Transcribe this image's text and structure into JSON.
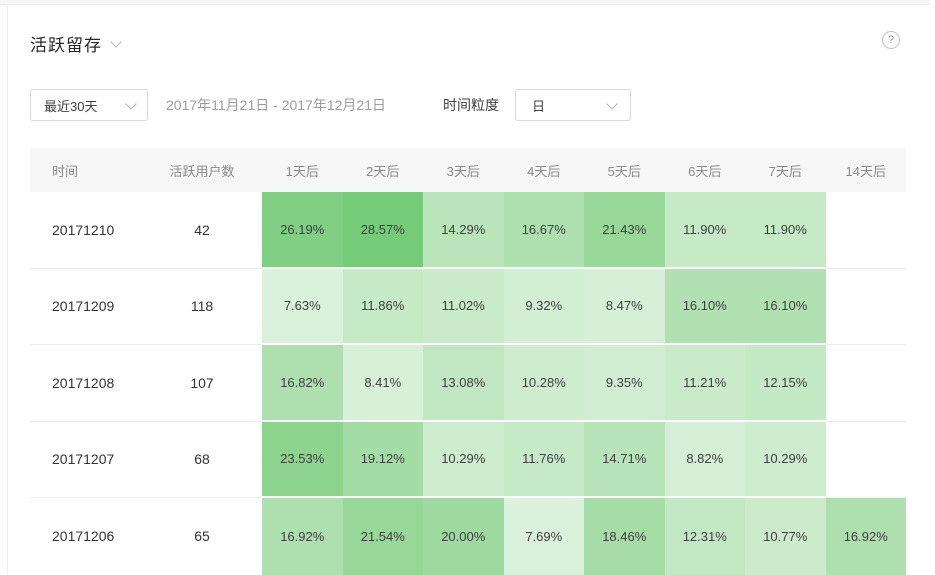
{
  "page": {
    "title": "活跃留存",
    "help_label": "?"
  },
  "controls": {
    "range_select_value": "最近30天",
    "date_range": "2017年11月21日 - 2017年12月21日",
    "granularity_label": "时间粒度",
    "granularity_select_value": "日"
  },
  "table": {
    "columns": [
      "时间",
      "活跃用户数",
      "1天后",
      "2天后",
      "3天后",
      "4天后",
      "5天后",
      "6天后",
      "7天后",
      "14天后"
    ],
    "rows": [
      {
        "date": "20171210",
        "users": "42",
        "cells": [
          "26.19%",
          "28.57%",
          "14.29%",
          "16.67%",
          "21.43%",
          "11.90%",
          "11.90%",
          ""
        ]
      },
      {
        "date": "20171209",
        "users": "118",
        "cells": [
          "7.63%",
          "11.86%",
          "11.02%",
          "9.32%",
          "8.47%",
          "16.10%",
          "16.10%",
          ""
        ]
      },
      {
        "date": "20171208",
        "users": "107",
        "cells": [
          "16.82%",
          "8.41%",
          "13.08%",
          "10.28%",
          "9.35%",
          "11.21%",
          "12.15%",
          ""
        ]
      },
      {
        "date": "20171207",
        "users": "68",
        "cells": [
          "23.53%",
          "19.12%",
          "10.29%",
          "11.76%",
          "14.71%",
          "8.82%",
          "10.29%",
          ""
        ]
      },
      {
        "date": "20171206",
        "users": "65",
        "cells": [
          "16.92%",
          "21.54%",
          "20.00%",
          "7.69%",
          "18.46%",
          "12.31%",
          "10.77%",
          "16.92%"
        ]
      }
    ]
  },
  "colors": {
    "heat_base_rgb": [
      110,
      200,
      112
    ],
    "heat_alpha_divisor": 30,
    "header_bg": "#f7f7f8",
    "row_border": "#ebebeb",
    "header_text": "#8a8a8a",
    "cell_text": "#404040"
  },
  "chart_data": {
    "type": "heatmap",
    "title": "活跃留存",
    "x_categories": [
      "1天后",
      "2天后",
      "3天后",
      "4天后",
      "5天后",
      "6天后",
      "7天后",
      "14天后"
    ],
    "y_categories": [
      "20171210",
      "20171209",
      "20171208",
      "20171207",
      "20171206"
    ],
    "active_users": [
      42,
      118,
      107,
      68,
      65
    ],
    "values_pct": [
      [
        26.19,
        28.57,
        14.29,
        16.67,
        21.43,
        11.9,
        11.9,
        null
      ],
      [
        7.63,
        11.86,
        11.02,
        9.32,
        8.47,
        16.1,
        16.1,
        null
      ],
      [
        16.82,
        8.41,
        13.08,
        10.28,
        9.35,
        11.21,
        12.15,
        null
      ],
      [
        23.53,
        19.12,
        10.29,
        11.76,
        14.71,
        8.82,
        10.29,
        null
      ],
      [
        16.92,
        21.54,
        20.0,
        7.69,
        18.46,
        12.31,
        10.77,
        16.92
      ]
    ],
    "value_unit": "%",
    "legend": "none",
    "color_scale": "white → green, alpha = value / 30"
  }
}
